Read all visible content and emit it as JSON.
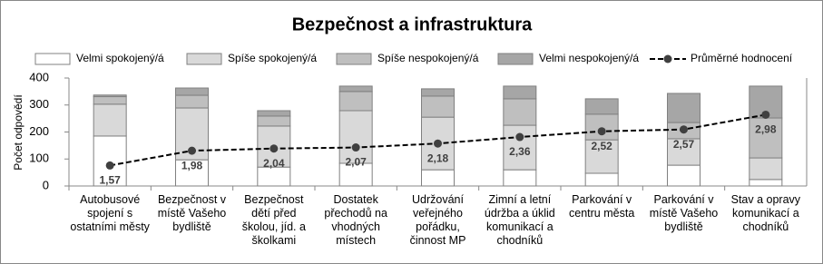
{
  "chart_data": {
    "type": "bar-line",
    "title": "Bezpečnost a infrastruktura",
    "ylabel": "Počet odpovědí",
    "categories": [
      "Autobusové spojení s ostatními městy",
      "Bezpečnost v místě Vašeho bydliště",
      "Bezpečnost dětí před školou, jíd. a školkami",
      "Dostatek přechodů na vhodných místech",
      "Udržování veřejného pořádku, činnost MP",
      "Zimní a letní údržba a úklid komunikací a chodníků",
      "Parkování v centru města",
      "Parkování v místě Vašeho bydliště",
      "Stav a opravy komunikací a chodníků"
    ],
    "series": [
      {
        "name": "Velmi spokojený/á",
        "color": "#ffffff",
        "values": [
          185,
          97,
          70,
          84,
          60,
          60,
          47,
          77,
          24
        ]
      },
      {
        "name": "Spíše spokojený/á",
        "color": "#d9d9d9",
        "values": [
          118,
          192,
          152,
          195,
          195,
          165,
          124,
          98,
          80
        ]
      },
      {
        "name": "Spíše nespokojený/á",
        "color": "#bfbfbf",
        "values": [
          28,
          47,
          37,
          71,
          78,
          98,
          95,
          60,
          148
        ]
      },
      {
        "name": "Velmi nespokojený/á",
        "color": "#a6a6a6",
        "values": [
          6,
          27,
          20,
          20,
          27,
          47,
          57,
          108,
          118
        ]
      },
      {
        "name": "Průměrné hodnocení",
        "type": "line",
        "axis": "y2",
        "color": "#000000",
        "values": [
          1.57,
          1.98,
          2.04,
          2.07,
          2.18,
          2.36,
          2.52,
          2.57,
          2.98
        ],
        "value_labels": [
          "1,57",
          "1,98",
          "2,04",
          "2,07",
          "2,18",
          "2,36",
          "2,52",
          "2,57",
          "2,98"
        ]
      }
    ],
    "ylim": [
      0,
      400
    ],
    "yticks": [
      0,
      100,
      200,
      300,
      400
    ],
    "y2lim": [
      1,
      4
    ],
    "grid": false,
    "legend": "top"
  }
}
